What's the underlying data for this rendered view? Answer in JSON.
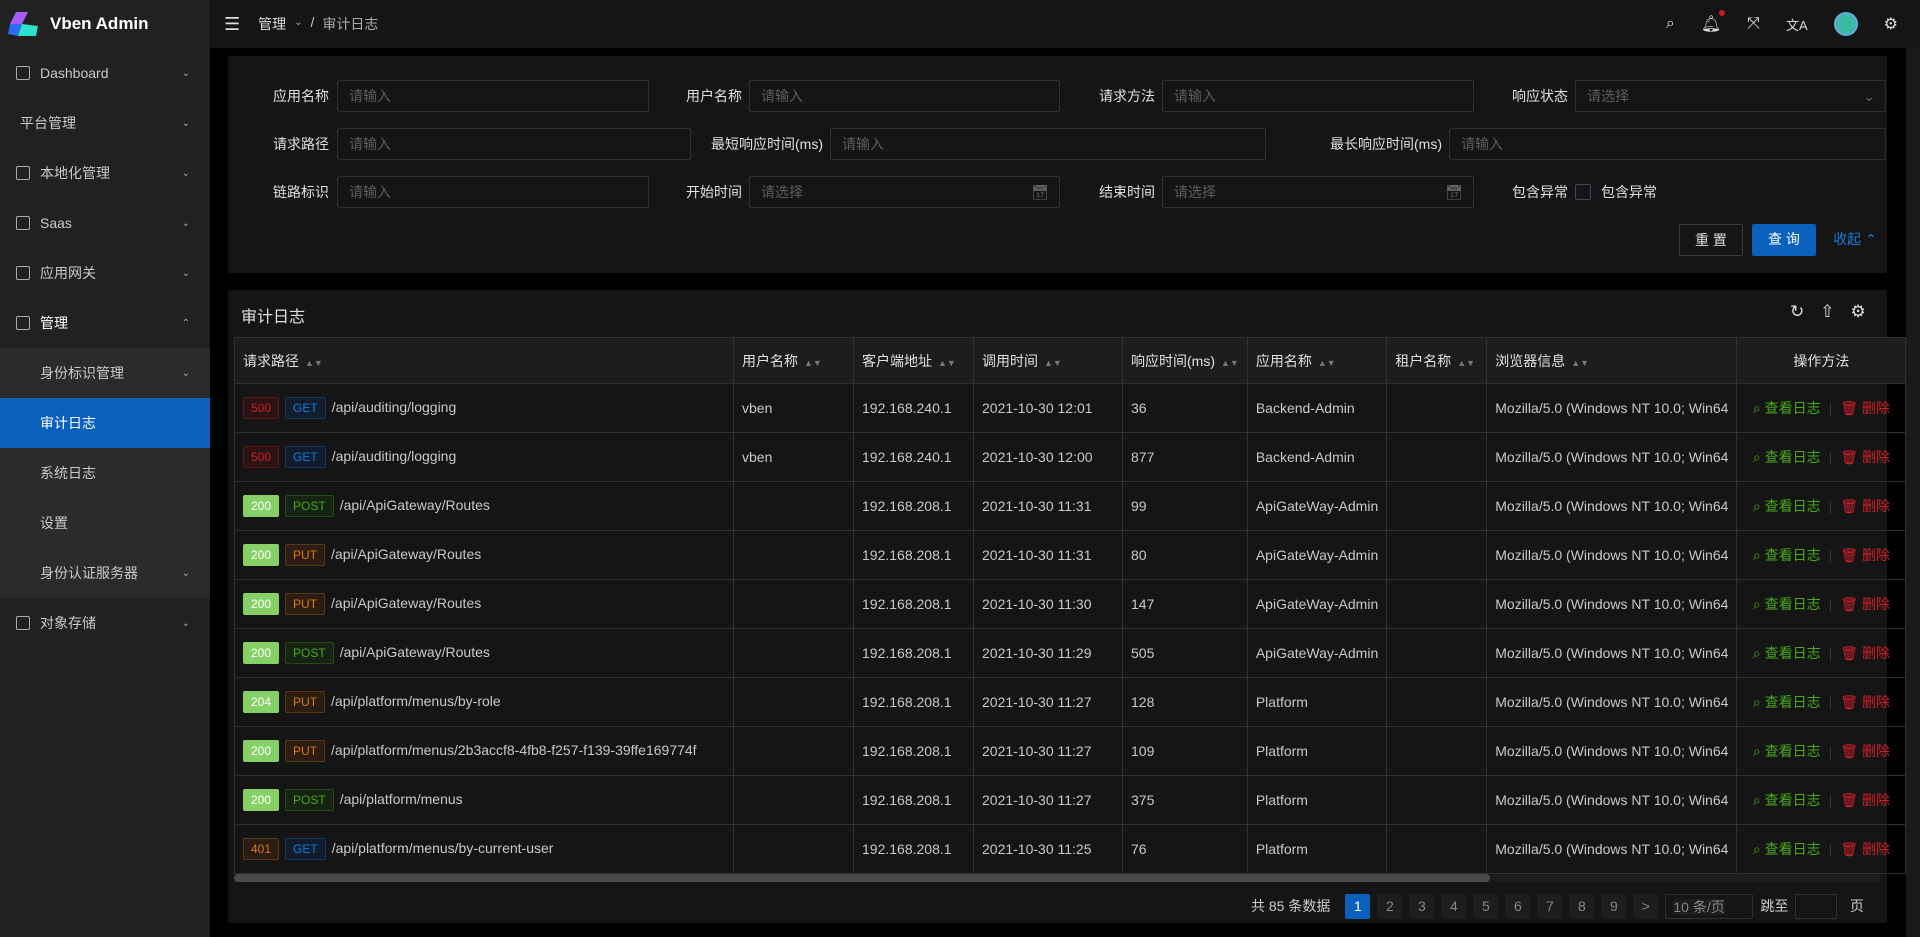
{
  "app": {
    "title": "Vben Admin"
  },
  "sidebar": {
    "items": [
      {
        "label": "Dashboard",
        "icon": "dashboard-icon",
        "chev": "⌄"
      },
      {
        "label": "平台管理",
        "icon": "",
        "chev": "⌄"
      },
      {
        "label": "本地化管理",
        "icon": "localization-icon",
        "chev": "⌄"
      },
      {
        "label": "Saas",
        "icon": "cloud-icon",
        "chev": "⌄"
      },
      {
        "label": "应用网关",
        "icon": "gateway-icon",
        "chev": "⌄"
      },
      {
        "label": "管理",
        "icon": "manage-icon",
        "chev": "⌃",
        "open": true
      },
      {
        "label": "身份标识管理",
        "sub": true,
        "chev": "⌄"
      },
      {
        "label": "审计日志",
        "sub": true,
        "active": true
      },
      {
        "label": "系统日志",
        "sub": true
      },
      {
        "label": "设置",
        "sub": true
      },
      {
        "label": "身份认证服务器",
        "sub": true,
        "chev": "⌄"
      },
      {
        "label": "对象存储",
        "icon": "file-icon",
        "chev": "⌄"
      }
    ]
  },
  "header": {
    "breadcrumb": [
      "管理",
      "审计日志"
    ],
    "icons": [
      "search-icon",
      "bell-icon",
      "fullscreen-icon",
      "translate-icon",
      "avatar",
      "settings-icon"
    ]
  },
  "form": {
    "app_name": {
      "label": "应用名称",
      "placeholder": "请输入"
    },
    "user_name": {
      "label": "用户名称",
      "placeholder": "请输入"
    },
    "method": {
      "label": "请求方法",
      "placeholder": "请输入"
    },
    "status": {
      "label": "响应状态",
      "placeholder": "请选择"
    },
    "path": {
      "label": "请求路径",
      "placeholder": "请输入"
    },
    "min_time": {
      "label": "最短响应时间(ms)",
      "placeholder": "请输入"
    },
    "max_time": {
      "label": "最长响应时间(ms)",
      "placeholder": "请输入"
    },
    "trace": {
      "label": "链路标识",
      "placeholder": "请输入"
    },
    "start": {
      "label": "开始时间",
      "placeholder": "请选择"
    },
    "end": {
      "label": "结束时间",
      "placeholder": "请选择"
    },
    "exception": {
      "label": "包含异常",
      "checkbox_label": "包含异常",
      "checked": false
    },
    "reset": "重 置",
    "query": "查 询",
    "collapse": "收起"
  },
  "table": {
    "title": "审计日志",
    "columns": [
      "请求路径",
      "用户名称",
      "客户端地址",
      "调用时间",
      "响应时间(ms)",
      "应用名称",
      "租户名称",
      "浏览器信息",
      "操作方法"
    ],
    "action_view": "查看日志",
    "action_delete": "删除",
    "rows": [
      {
        "status": "500",
        "method": "GET",
        "path": "/api/auditing/logging",
        "user": "vben",
        "ip": "192.168.240.1",
        "time": "2021-10-30 12:01",
        "ms": "36",
        "app": "Backend-Admin",
        "tenant": "",
        "browser": "Mozilla/5.0 (Windows NT 10.0; Win64"
      },
      {
        "status": "500",
        "method": "GET",
        "path": "/api/auditing/logging",
        "user": "vben",
        "ip": "192.168.240.1",
        "time": "2021-10-30 12:00",
        "ms": "877",
        "app": "Backend-Admin",
        "tenant": "",
        "browser": "Mozilla/5.0 (Windows NT 10.0; Win64"
      },
      {
        "status": "200",
        "method": "POST",
        "path": "/api/ApiGateway/Routes",
        "user": "",
        "ip": "192.168.208.1",
        "time": "2021-10-30 11:31",
        "ms": "99",
        "app": "ApiGateWay-Admin",
        "tenant": "",
        "browser": "Mozilla/5.0 (Windows NT 10.0; Win64"
      },
      {
        "status": "200",
        "method": "PUT",
        "path": "/api/ApiGateway/Routes",
        "user": "",
        "ip": "192.168.208.1",
        "time": "2021-10-30 11:31",
        "ms": "80",
        "app": "ApiGateWay-Admin",
        "tenant": "",
        "browser": "Mozilla/5.0 (Windows NT 10.0; Win64"
      },
      {
        "status": "200",
        "method": "PUT",
        "path": "/api/ApiGateway/Routes",
        "user": "",
        "ip": "192.168.208.1",
        "time": "2021-10-30 11:30",
        "ms": "147",
        "app": "ApiGateWay-Admin",
        "tenant": "",
        "browser": "Mozilla/5.0 (Windows NT 10.0; Win64"
      },
      {
        "status": "200",
        "method": "POST",
        "path": "/api/ApiGateway/Routes",
        "user": "",
        "ip": "192.168.208.1",
        "time": "2021-10-30 11:29",
        "ms": "505",
        "app": "ApiGateWay-Admin",
        "tenant": "",
        "browser": "Mozilla/5.0 (Windows NT 10.0; Win64"
      },
      {
        "status": "204",
        "method": "PUT",
        "path": "/api/platform/menus/by-role",
        "user": "",
        "ip": "192.168.208.1",
        "time": "2021-10-30 11:27",
        "ms": "128",
        "app": "Platform",
        "tenant": "",
        "browser": "Mozilla/5.0 (Windows NT 10.0; Win64"
      },
      {
        "status": "200",
        "method": "PUT",
        "path": "/api/platform/menus/2b3accf8-4fb8-f257-f139-39ffe169774f",
        "user": "",
        "ip": "192.168.208.1",
        "time": "2021-10-30 11:27",
        "ms": "109",
        "app": "Platform",
        "tenant": "",
        "browser": "Mozilla/5.0 (Windows NT 10.0; Win64"
      },
      {
        "status": "200",
        "method": "POST",
        "path": "/api/platform/menus",
        "user": "",
        "ip": "192.168.208.1",
        "time": "2021-10-30 11:27",
        "ms": "375",
        "app": "Platform",
        "tenant": "",
        "browser": "Mozilla/5.0 (Windows NT 10.0; Win64"
      },
      {
        "status": "401",
        "method": "GET",
        "path": "/api/platform/menus/by-current-user",
        "user": "",
        "ip": "192.168.208.1",
        "time": "2021-10-30 11:25",
        "ms": "76",
        "app": "Platform",
        "tenant": "",
        "browser": "Mozilla/5.0 (Windows NT 10.0; Win64"
      }
    ]
  },
  "pagination": {
    "total_text": "共 85 条数据",
    "pages": [
      "1",
      "2",
      "3",
      "4",
      "5",
      "6",
      "7",
      "8",
      "9"
    ],
    "current": "1",
    "next": ">",
    "page_size": "10 条/页",
    "jump_label": "跳至",
    "jump_suffix": "页"
  },
  "colors": {
    "primary": "#0960bd",
    "success": "#49aa19",
    "danger": "#d32029",
    "warning": "#d87a16"
  }
}
